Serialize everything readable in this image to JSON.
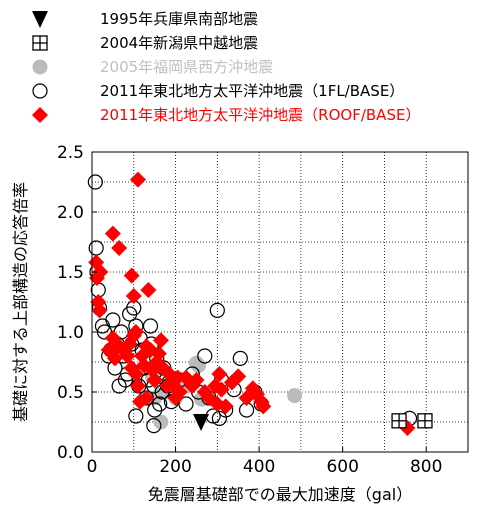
{
  "chart_data": {
    "type": "scatter",
    "xlabel": "免震層基礎部での最大加速度（gal）",
    "ylabel": "基礎に対する上部構造の応答倍率",
    "xlim": [
      0,
      900
    ],
    "ylim": [
      0,
      2.5
    ],
    "xticks": [
      "0",
      "200",
      "400",
      "600",
      "800"
    ],
    "yticks": [
      "0.0",
      "0.5",
      "1.0",
      "1.5",
      "2.0",
      "2.5"
    ],
    "grid": true,
    "legend_position": "top-left, above plot",
    "series": [
      {
        "name": "1995年兵庫県南部地震",
        "marker": "triangle-down",
        "color": "#000000",
        "text_color": "#000000",
        "points": [
          [
            261,
            0.25
          ]
        ]
      },
      {
        "name": "2004年新潟県中越地震",
        "marker": "boxed-cross",
        "color": "#000000",
        "text_color": "#000000",
        "points": [
          [
            735,
            0.26
          ],
          [
            797,
            0.26
          ]
        ]
      },
      {
        "name": "2005年福岡県西方沖地震",
        "marker": "filled-circle",
        "color": "#bbbbbb",
        "text_color": "#c0c0c0",
        "points": [
          [
            145,
            0.62
          ],
          [
            150,
            0.45
          ],
          [
            165,
            0.55
          ],
          [
            180,
            0.5
          ],
          [
            195,
            0.52
          ],
          [
            200,
            0.45
          ],
          [
            215,
            0.6
          ],
          [
            230,
            0.55
          ],
          [
            250,
            0.74
          ],
          [
            255,
            0.72
          ],
          [
            262,
            0.44
          ],
          [
            165,
            0.25
          ],
          [
            485,
            0.47
          ]
        ]
      },
      {
        "name": "2011年東北地方太平洋沖地震（1FL/BASE）",
        "marker": "open-circle",
        "color": "#000000",
        "text_color": "#000000",
        "points": [
          [
            8,
            2.25
          ],
          [
            10,
            1.7
          ],
          [
            12,
            1.5
          ],
          [
            15,
            1.35
          ],
          [
            18,
            1.2
          ],
          [
            25,
            1.05
          ],
          [
            30,
            1.0
          ],
          [
            40,
            0.8
          ],
          [
            45,
            0.85
          ],
          [
            50,
            1.1
          ],
          [
            55,
            0.7
          ],
          [
            60,
            0.9
          ],
          [
            65,
            0.55
          ],
          [
            70,
            1.0
          ],
          [
            75,
            0.8
          ],
          [
            80,
            0.6
          ],
          [
            85,
            0.65
          ],
          [
            90,
            1.15
          ],
          [
            95,
            0.9
          ],
          [
            100,
            1.2
          ],
          [
            105,
            1.05
          ],
          [
            108,
            0.75
          ],
          [
            112,
            0.55
          ],
          [
            115,
            0.95
          ],
          [
            120,
            0.85
          ],
          [
            125,
            0.7
          ],
          [
            130,
            0.45
          ],
          [
            135,
            0.6
          ],
          [
            140,
            1.05
          ],
          [
            142,
            0.9
          ],
          [
            148,
            0.55
          ],
          [
            150,
            0.35
          ],
          [
            155,
            0.78
          ],
          [
            158,
            0.65
          ],
          [
            162,
            0.4
          ],
          [
            168,
            0.5
          ],
          [
            172,
            0.7
          ],
          [
            178,
            0.6
          ],
          [
            182,
            0.55
          ],
          [
            190,
            0.42
          ],
          [
            200,
            0.48
          ],
          [
            210,
            0.6
          ],
          [
            225,
            0.4
          ],
          [
            240,
            0.65
          ],
          [
            255,
            0.5
          ],
          [
            270,
            0.8
          ],
          [
            280,
            0.45
          ],
          [
            290,
            0.3
          ],
          [
            300,
            1.18
          ],
          [
            305,
            0.28
          ],
          [
            310,
            0.6
          ],
          [
            320,
            0.35
          ],
          [
            340,
            0.52
          ],
          [
            355,
            0.78
          ],
          [
            370,
            0.35
          ],
          [
            390,
            0.5
          ],
          [
            405,
            0.4
          ],
          [
            148,
            0.22
          ],
          [
            105,
            0.3
          ],
          [
            760,
            0.28
          ]
        ]
      },
      {
        "name": "2011年東北地方太平洋沖地震（ROOF/BASE）",
        "marker": "filled-diamond",
        "color": "#ff0000",
        "text_color": "#ff0000",
        "points": [
          [
            110,
            2.27
          ],
          [
            10,
            1.58
          ],
          [
            12,
            1.45
          ],
          [
            15,
            1.25
          ],
          [
            18,
            1.18
          ],
          [
            20,
            1.5
          ],
          [
            50,
            1.82
          ],
          [
            65,
            1.7
          ],
          [
            95,
            1.47
          ],
          [
            100,
            1.3
          ],
          [
            135,
            1.35
          ],
          [
            105,
            1.0
          ],
          [
            100,
            0.97
          ],
          [
            90,
            0.9
          ],
          [
            40,
            0.85
          ],
          [
            50,
            0.95
          ],
          [
            55,
            0.78
          ],
          [
            65,
            0.88
          ],
          [
            75,
            0.85
          ],
          [
            85,
            0.8
          ],
          [
            95,
            0.7
          ],
          [
            105,
            0.65
          ],
          [
            110,
            0.55
          ],
          [
            120,
            0.8
          ],
          [
            125,
            0.72
          ],
          [
            130,
            0.88
          ],
          [
            140,
            0.85
          ],
          [
            145,
            0.68
          ],
          [
            150,
            0.6
          ],
          [
            155,
            0.75
          ],
          [
            160,
            0.82
          ],
          [
            165,
            0.93
          ],
          [
            170,
            0.7
          ],
          [
            180,
            0.55
          ],
          [
            185,
            0.65
          ],
          [
            195,
            0.55
          ],
          [
            200,
            0.45
          ],
          [
            205,
            0.62
          ],
          [
            210,
            0.5
          ],
          [
            225,
            0.62
          ],
          [
            240,
            0.55
          ],
          [
            250,
            0.6
          ],
          [
            270,
            0.5
          ],
          [
            280,
            0.45
          ],
          [
            295,
            0.55
          ],
          [
            300,
            0.4
          ],
          [
            305,
            0.65
          ],
          [
            310,
            0.52
          ],
          [
            320,
            0.38
          ],
          [
            335,
            0.58
          ],
          [
            350,
            0.63
          ],
          [
            370,
            0.45
          ],
          [
            385,
            0.53
          ],
          [
            395,
            0.48
          ],
          [
            405,
            0.42
          ],
          [
            410,
            0.38
          ],
          [
            755,
            0.2
          ],
          [
            130,
            0.45
          ],
          [
            115,
            0.42
          ]
        ]
      }
    ]
  }
}
